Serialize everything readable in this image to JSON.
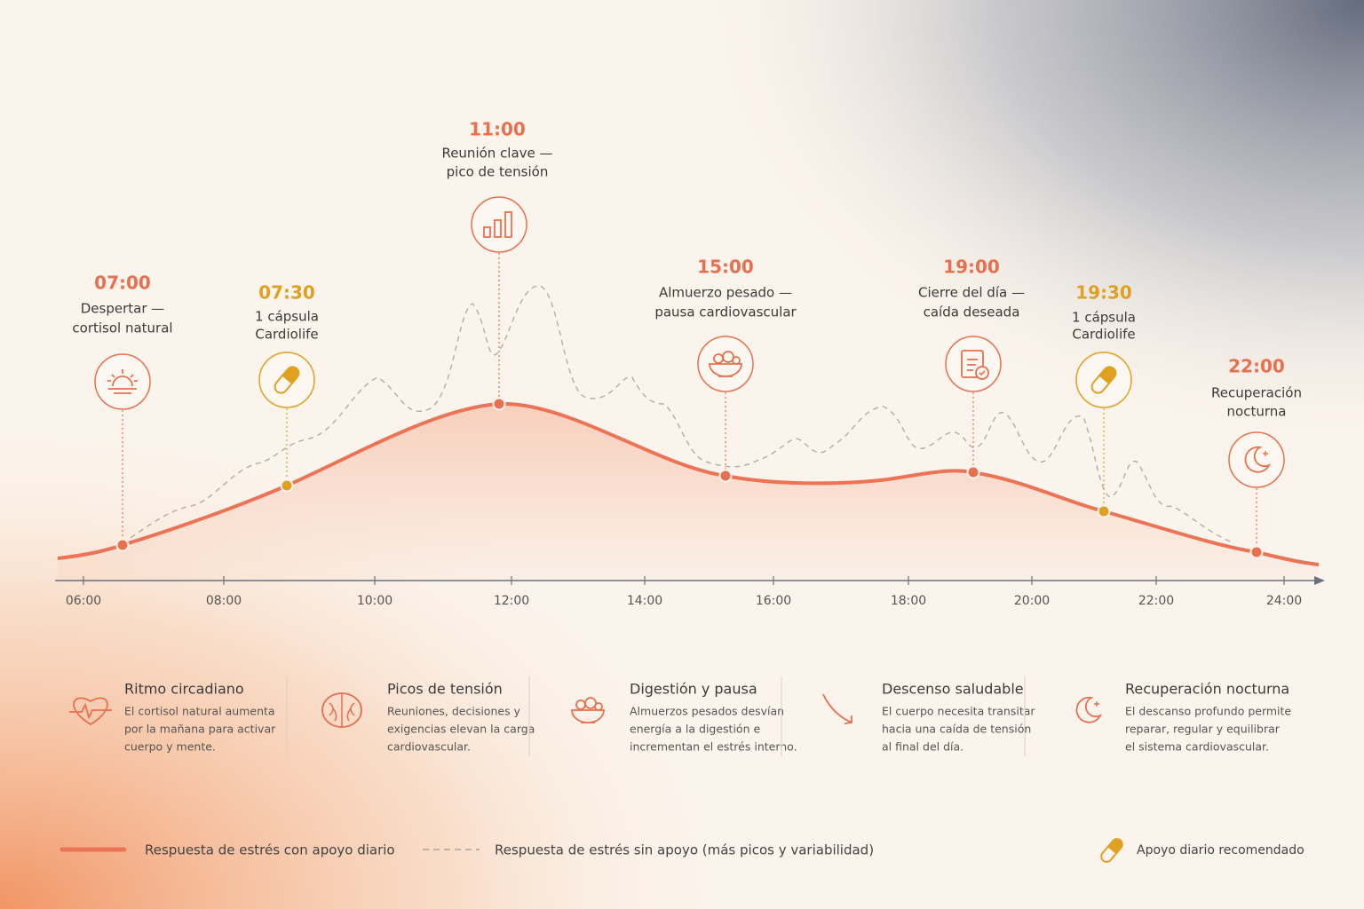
{
  "events": [
    {
      "time": "07:00",
      "lines": [
        "Despertar —",
        "cortisol natural"
      ]
    },
    {
      "time": "07:30",
      "lines": [
        "1 cápsula",
        "Cardiolife"
      ]
    },
    {
      "time": "11:00",
      "lines": [
        "Reunión clave —",
        "pico de tensión"
      ]
    },
    {
      "time": "15:00",
      "lines": [
        "Almuerzo pesado —",
        "pausa cardiovascular"
      ]
    },
    {
      "time": "19:00",
      "lines": [
        "Cierre del día —",
        "caída deseada"
      ]
    },
    {
      "time": "19:30",
      "lines": [
        "1 cápsula",
        "Cardiolife"
      ]
    },
    {
      "time": "22:00",
      "lines": [
        "Recuperación",
        "nocturna"
      ]
    }
  ],
  "axis": {
    "ticks": [
      "06:00",
      "08:00",
      "10:00",
      "12:00",
      "14:00",
      "16:00",
      "18:00",
      "20:00",
      "22:00",
      "24:00"
    ]
  },
  "features": [
    {
      "title": "Ritmo circadiano",
      "lines": [
        "El cortisol natural aumenta",
        "por la mañana para activar",
        "cuerpo y mente."
      ]
    },
    {
      "title": "Picos de tensión",
      "lines": [
        "Reuniones, decisiones y",
        "exigencias elevan la carga",
        "cardiovascular."
      ]
    },
    {
      "title": "Digestión y pausa",
      "lines": [
        "Almuerzos pesados desvían",
        "energía a la digestión e",
        "incrementan el estrés interno."
      ]
    },
    {
      "title": "Descenso saludable",
      "lines": [
        "El cuerpo necesita transitar",
        "hacia una caída de tensión",
        "al final del día."
      ]
    },
    {
      "title": "Recuperación nocturna",
      "lines": [
        "El descanso profundo permite",
        "reparar, regular y equilibrar",
        "el sistema cardiovascular."
      ]
    }
  ],
  "legend": [
    "Respuesta de estrés con apoyo diario",
    "Respuesta de estrés sin apoyo (más picos y variabilidad)",
    "Apoyo diario recomendado"
  ]
}
